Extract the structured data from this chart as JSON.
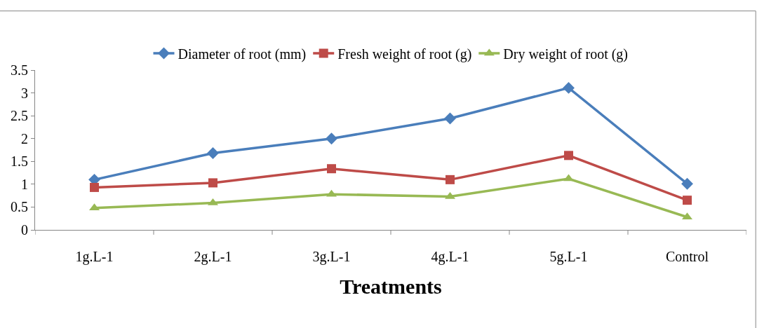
{
  "chart_data": {
    "type": "line",
    "xlabel": "Treatments",
    "categories": [
      "1g.L-1",
      "2g.L-1",
      "3g.L-1",
      "4g.L-1",
      "5g.L-1",
      "Control"
    ],
    "series": [
      {
        "name": "Diameter of root (mm)",
        "color": "#4a7ebb",
        "marker": "diamond",
        "values": [
          1.1,
          1.68,
          2.0,
          2.44,
          3.11,
          1.01
        ]
      },
      {
        "name": "Fresh weight of root (g)",
        "color": "#be4b48",
        "marker": "square",
        "values": [
          0.93,
          1.03,
          1.34,
          1.1,
          1.63,
          0.65
        ]
      },
      {
        "name": "Dry weight of root (g)",
        "color": "#98b954",
        "marker": "triangle",
        "values": [
          0.48,
          0.59,
          0.78,
          0.73,
          1.12,
          0.28
        ]
      }
    ],
    "ylim": [
      0,
      3.5
    ],
    "yticks": [
      0,
      0.5,
      1,
      1.5,
      2,
      2.5,
      3,
      3.5
    ],
    "legend": "top",
    "line_style": "solid"
  }
}
